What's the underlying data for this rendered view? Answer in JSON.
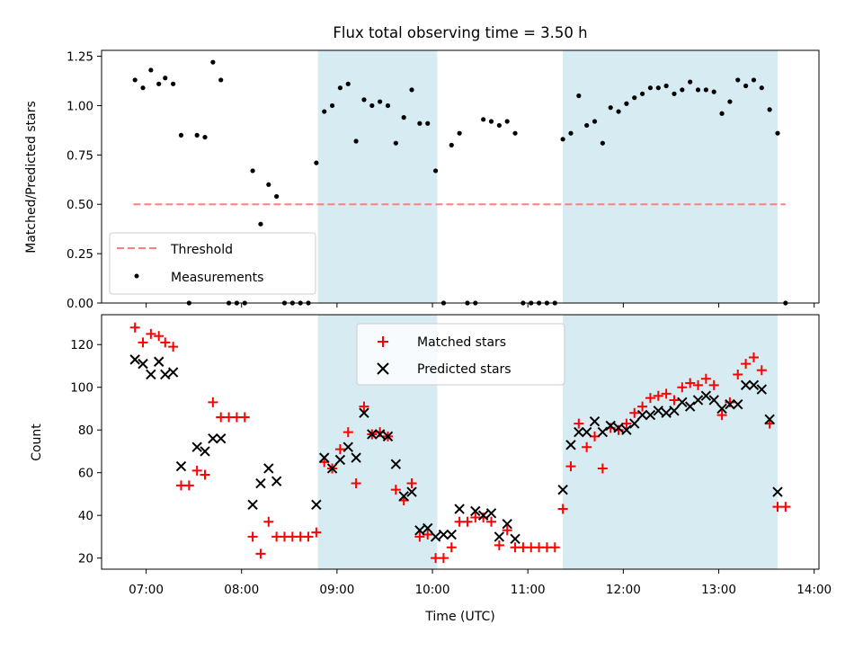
{
  "chart_data": [
    {
      "type": "scatter",
      "title": "Flux total observing time = 3.50 h",
      "xlabel": "",
      "ylabel": "Matched/Predicted stars",
      "xlim": [
        "06:32",
        "14:03"
      ],
      "ylim": [
        0,
        1.28
      ],
      "yticks": [
        "0.00",
        "0.25",
        "0.50",
        "0.75",
        "1.00",
        "1.25"
      ],
      "shaded_intervals": [
        [
          "08:48",
          "10:03"
        ],
        [
          "11:22",
          "13:37"
        ]
      ],
      "shade_color": "#add8e6",
      "threshold": {
        "name": "Threshold",
        "value": 0.5,
        "x_start": "06:52",
        "x_end": "13:42",
        "color": "#ff7f7f"
      },
      "legend": {
        "placement": "lower-left",
        "entries": [
          "Threshold",
          "Measurements"
        ]
      },
      "series": [
        {
          "name": "Measurements",
          "marker": "dot",
          "color": "#000000",
          "points": [
            [
              "06:53",
              1.13
            ],
            [
              "06:58",
              1.09
            ],
            [
              "07:03",
              1.18
            ],
            [
              "07:08",
              1.11
            ],
            [
              "07:12",
              1.14
            ],
            [
              "07:17",
              1.11
            ],
            [
              "07:22",
              0.85
            ],
            [
              "07:27",
              0.0
            ],
            [
              "07:32",
              0.85
            ],
            [
              "07:37",
              0.84
            ],
            [
              "07:42",
              1.22
            ],
            [
              "07:47",
              1.13
            ],
            [
              "07:52",
              0.0
            ],
            [
              "07:57",
              0.0
            ],
            [
              "08:02",
              0.0
            ],
            [
              "08:07",
              0.67
            ],
            [
              "08:12",
              0.4
            ],
            [
              "08:17",
              0.6
            ],
            [
              "08:22",
              0.54
            ],
            [
              "08:27",
              0.0
            ],
            [
              "08:32",
              0.0
            ],
            [
              "08:37",
              0.0
            ],
            [
              "08:42",
              0.0
            ],
            [
              "08:47",
              0.71
            ],
            [
              "08:52",
              0.97
            ],
            [
              "08:57",
              1.0
            ],
            [
              "09:02",
              1.09
            ],
            [
              "09:07",
              1.11
            ],
            [
              "09:12",
              0.82
            ],
            [
              "09:17",
              1.03
            ],
            [
              "09:22",
              1.0
            ],
            [
              "09:27",
              1.02
            ],
            [
              "09:32",
              1.0
            ],
            [
              "09:37",
              0.81
            ],
            [
              "09:42",
              0.94
            ],
            [
              "09:47",
              1.08
            ],
            [
              "09:52",
              0.91
            ],
            [
              "09:57",
              0.91
            ],
            [
              "10:02",
              0.67
            ],
            [
              "10:07",
              0.0
            ],
            [
              "10:12",
              0.8
            ],
            [
              "10:17",
              0.86
            ],
            [
              "10:22",
              0.0
            ],
            [
              "10:27",
              0.0
            ],
            [
              "10:32",
              0.93
            ],
            [
              "10:37",
              0.92
            ],
            [
              "10:42",
              0.9
            ],
            [
              "10:47",
              0.92
            ],
            [
              "10:52",
              0.86
            ],
            [
              "10:57",
              0.0
            ],
            [
              "11:02",
              0.0
            ],
            [
              "11:07",
              0.0
            ],
            [
              "11:12",
              0.0
            ],
            [
              "11:17",
              0.0
            ],
            [
              "11:22",
              0.83
            ],
            [
              "11:27",
              0.86
            ],
            [
              "11:32",
              1.05
            ],
            [
              "11:37",
              0.9
            ],
            [
              "11:42",
              0.92
            ],
            [
              "11:47",
              0.81
            ],
            [
              "11:52",
              0.99
            ],
            [
              "11:57",
              0.97
            ],
            [
              "12:02",
              1.01
            ],
            [
              "12:07",
              1.04
            ],
            [
              "12:12",
              1.06
            ],
            [
              "12:17",
              1.09
            ],
            [
              "12:22",
              1.09
            ],
            [
              "12:27",
              1.1
            ],
            [
              "12:32",
              1.06
            ],
            [
              "12:37",
              1.08
            ],
            [
              "12:42",
              1.12
            ],
            [
              "12:47",
              1.08
            ],
            [
              "12:52",
              1.08
            ],
            [
              "12:57",
              1.07
            ],
            [
              "13:02",
              0.96
            ],
            [
              "13:07",
              1.02
            ],
            [
              "13:12",
              1.13
            ],
            [
              "13:17",
              1.1
            ],
            [
              "13:22",
              1.13
            ],
            [
              "13:27",
              1.09
            ],
            [
              "13:32",
              0.98
            ],
            [
              "13:37",
              0.86
            ],
            [
              "13:42",
              0.0
            ]
          ]
        }
      ]
    },
    {
      "type": "scatter",
      "title": "",
      "xlabel": "Time (UTC)",
      "ylabel": "Count",
      "xlim": [
        "06:32",
        "14:03"
      ],
      "xticks": [
        "07:00",
        "08:00",
        "09:00",
        "10:00",
        "11:00",
        "12:00",
        "13:00",
        "14:00"
      ],
      "ylim": [
        14.8,
        134
      ],
      "yticks": [
        "20",
        "40",
        "60",
        "80",
        "100",
        "120"
      ],
      "shaded_intervals": [
        [
          "08:48",
          "10:03"
        ],
        [
          "11:22",
          "13:37"
        ]
      ],
      "shade_color": "#add8e6",
      "legend": {
        "placement": "top-center",
        "entries": [
          "Matched stars",
          "Predicted stars"
        ]
      },
      "series": [
        {
          "name": "Matched stars",
          "marker": "plus",
          "color": "#ff0000",
          "points": [
            [
              "06:53",
              128
            ],
            [
              "06:58",
              121
            ],
            [
              "07:03",
              125
            ],
            [
              "07:08",
              124
            ],
            [
              "07:12",
              121
            ],
            [
              "07:17",
              119
            ],
            [
              "07:22",
              54
            ],
            [
              "07:27",
              54
            ],
            [
              "07:32",
              61
            ],
            [
              "07:37",
              59
            ],
            [
              "07:42",
              93
            ],
            [
              "07:47",
              86
            ],
            [
              "07:52",
              86
            ],
            [
              "07:57",
              86
            ],
            [
              "08:02",
              86
            ],
            [
              "08:07",
              30
            ],
            [
              "08:12",
              22
            ],
            [
              "08:17",
              37
            ],
            [
              "08:22",
              30
            ],
            [
              "08:27",
              30
            ],
            [
              "08:32",
              30
            ],
            [
              "08:37",
              30
            ],
            [
              "08:42",
              30
            ],
            [
              "08:47",
              32
            ],
            [
              "08:52",
              65
            ],
            [
              "08:57",
              62
            ],
            [
              "09:02",
              71
            ],
            [
              "09:07",
              79
            ],
            [
              "09:12",
              55
            ],
            [
              "09:17",
              91
            ],
            [
              "09:22",
              78
            ],
            [
              "09:27",
              79
            ],
            [
              "09:32",
              77
            ],
            [
              "09:37",
              52
            ],
            [
              "09:42",
              47
            ],
            [
              "09:47",
              55
            ],
            [
              "09:52",
              30
            ],
            [
              "09:57",
              31
            ],
            [
              "10:02",
              20
            ],
            [
              "10:07",
              20
            ],
            [
              "10:12",
              25
            ],
            [
              "10:17",
              37
            ],
            [
              "10:22",
              37
            ],
            [
              "10:27",
              39
            ],
            [
              "10:32",
              39
            ],
            [
              "10:37",
              37
            ],
            [
              "10:42",
              26
            ],
            [
              "10:47",
              33
            ],
            [
              "10:52",
              25
            ],
            [
              "10:57",
              25
            ],
            [
              "11:02",
              25
            ],
            [
              "11:07",
              25
            ],
            [
              "11:12",
              25
            ],
            [
              "11:17",
              25
            ],
            [
              "11:22",
              43
            ],
            [
              "11:27",
              63
            ],
            [
              "11:32",
              83
            ],
            [
              "11:37",
              72
            ],
            [
              "11:42",
              77
            ],
            [
              "11:47",
              62
            ],
            [
              "11:52",
              81
            ],
            [
              "11:57",
              80
            ],
            [
              "12:02",
              83
            ],
            [
              "12:07",
              88
            ],
            [
              "12:12",
              91
            ],
            [
              "12:17",
              95
            ],
            [
              "12:22",
              96
            ],
            [
              "12:27",
              97
            ],
            [
              "12:32",
              94
            ],
            [
              "12:37",
              100
            ],
            [
              "12:42",
              102
            ],
            [
              "12:47",
              101
            ],
            [
              "12:52",
              104
            ],
            [
              "12:57",
              101
            ],
            [
              "13:02",
              87
            ],
            [
              "13:07",
              93
            ],
            [
              "13:12",
              106
            ],
            [
              "13:17",
              111
            ],
            [
              "13:22",
              114
            ],
            [
              "13:27",
              108
            ],
            [
              "13:32",
              83
            ],
            [
              "13:37",
              44
            ],
            [
              "13:42",
              44
            ]
          ]
        },
        {
          "name": "Predicted stars",
          "marker": "x",
          "color": "#000000",
          "points": [
            [
              "06:53",
              113
            ],
            [
              "06:58",
              111
            ],
            [
              "07:03",
              106
            ],
            [
              "07:08",
              112
            ],
            [
              "07:12",
              106
            ],
            [
              "07:17",
              107
            ],
            [
              "07:22",
              63
            ],
            [
              "07:32",
              72
            ],
            [
              "07:37",
              70
            ],
            [
              "07:42",
              76
            ],
            [
              "07:47",
              76
            ],
            [
              "08:07",
              45
            ],
            [
              "08:12",
              55
            ],
            [
              "08:17",
              62
            ],
            [
              "08:22",
              56
            ],
            [
              "08:47",
              45
            ],
            [
              "08:52",
              67
            ],
            [
              "08:57",
              62
            ],
            [
              "09:02",
              66
            ],
            [
              "09:07",
              72
            ],
            [
              "09:12",
              67
            ],
            [
              "09:17",
              88
            ],
            [
              "09:22",
              78
            ],
            [
              "09:27",
              78
            ],
            [
              "09:32",
              77
            ],
            [
              "09:37",
              64
            ],
            [
              "09:42",
              49
            ],
            [
              "09:47",
              51
            ],
            [
              "09:52",
              33
            ],
            [
              "09:57",
              34
            ],
            [
              "10:02",
              30
            ],
            [
              "10:07",
              31
            ],
            [
              "10:12",
              31
            ],
            [
              "10:17",
              43
            ],
            [
              "10:27",
              42
            ],
            [
              "10:32",
              40
            ],
            [
              "10:37",
              41
            ],
            [
              "10:42",
              30
            ],
            [
              "10:47",
              36
            ],
            [
              "10:52",
              29
            ],
            [
              "11:22",
              52
            ],
            [
              "11:27",
              73
            ],
            [
              "11:32",
              79
            ],
            [
              "11:37",
              79
            ],
            [
              "11:42",
              84
            ],
            [
              "11:47",
              79
            ],
            [
              "11:52",
              82
            ],
            [
              "11:57",
              81
            ],
            [
              "12:02",
              80
            ],
            [
              "12:07",
              83
            ],
            [
              "12:12",
              87
            ],
            [
              "12:17",
              87
            ],
            [
              "12:22",
              89
            ],
            [
              "12:27",
              88
            ],
            [
              "12:32",
              89
            ],
            [
              "12:37",
              93
            ],
            [
              "12:42",
              91
            ],
            [
              "12:47",
              94
            ],
            [
              "12:52",
              96
            ],
            [
              "12:57",
              94
            ],
            [
              "13:02",
              90
            ],
            [
              "13:07",
              92
            ],
            [
              "13:12",
              92
            ],
            [
              "13:17",
              101
            ],
            [
              "13:22",
              101
            ],
            [
              "13:27",
              99
            ],
            [
              "13:32",
              85
            ],
            [
              "13:37",
              51
            ]
          ]
        }
      ]
    }
  ]
}
